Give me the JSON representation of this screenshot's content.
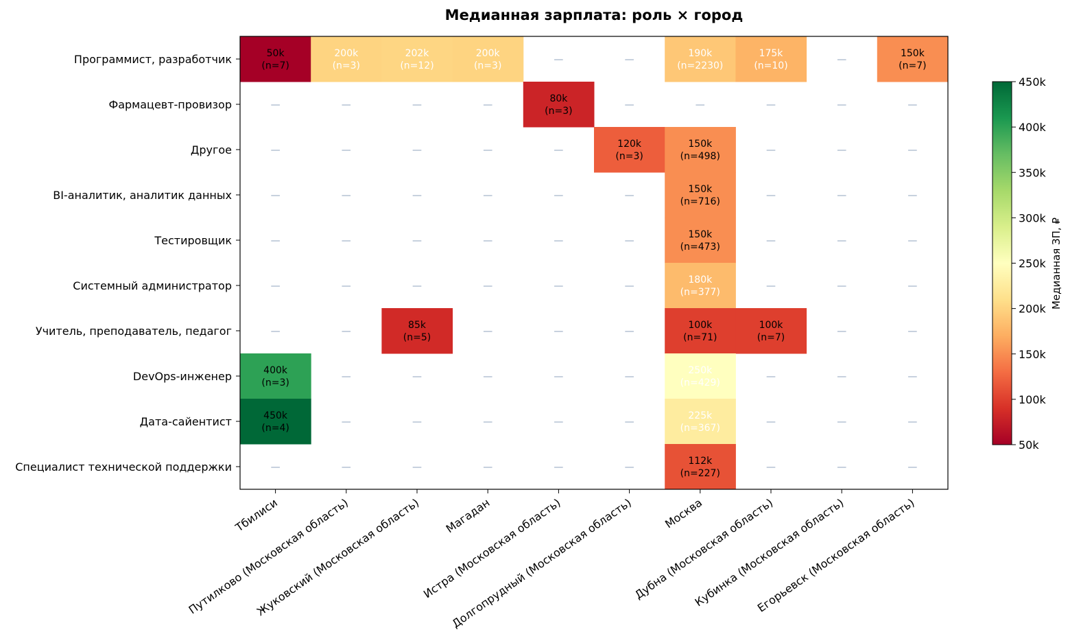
{
  "chart_data": {
    "type": "heatmap",
    "title": "Медианная зарплата: роль × город",
    "rows": [
      "Программист, разработчик",
      "Фармацевт-провизор",
      "Другое",
      "BI-аналитик, аналитик данных",
      "Тестировщик",
      "Системный администратор",
      "Учитель, преподаватель, педагог",
      "DevOps-инженер",
      "Дата-сайентист",
      "Специалист технической поддержки"
    ],
    "columns": [
      "Тбилиси",
      "Путилково (Московская область)",
      "Жуковский  (Московская область)",
      "Магадан",
      "Истра (Московская область)",
      "Долгопрудный (Московская область)",
      "Москва",
      "Дубна (Московская область)",
      "Кубинка (Московская область)",
      "Егорьевск (Московская область)"
    ],
    "cells": [
      {
        "row": 0,
        "col": 0,
        "value": 50,
        "label": "50k",
        "n": "(n=7)"
      },
      {
        "row": 0,
        "col": 1,
        "value": 200,
        "label": "200k",
        "n": "(n=3)"
      },
      {
        "row": 0,
        "col": 2,
        "value": 202,
        "label": "202k",
        "n": "(n=12)"
      },
      {
        "row": 0,
        "col": 3,
        "value": 200,
        "label": "200k",
        "n": "(n=3)"
      },
      {
        "row": 0,
        "col": 6,
        "value": 190,
        "label": "190k",
        "n": "(n=2230)"
      },
      {
        "row": 0,
        "col": 7,
        "value": 175,
        "label": "175k",
        "n": "(n=10)"
      },
      {
        "row": 0,
        "col": 9,
        "value": 150,
        "label": "150k",
        "n": "(n=7)"
      },
      {
        "row": 1,
        "col": 4,
        "value": 80,
        "label": "80k",
        "n": "(n=3)"
      },
      {
        "row": 2,
        "col": 5,
        "value": 120,
        "label": "120k",
        "n": "(n=3)"
      },
      {
        "row": 2,
        "col": 6,
        "value": 150,
        "label": "150k",
        "n": "(n=498)"
      },
      {
        "row": 3,
        "col": 6,
        "value": 150,
        "label": "150k",
        "n": "(n=716)"
      },
      {
        "row": 4,
        "col": 6,
        "value": 150,
        "label": "150k",
        "n": "(n=473)"
      },
      {
        "row": 5,
        "col": 6,
        "value": 180,
        "label": "180k",
        "n": "(n=377)"
      },
      {
        "row": 6,
        "col": 2,
        "value": 85,
        "label": "85k",
        "n": "(n=5)"
      },
      {
        "row": 6,
        "col": 6,
        "value": 100,
        "label": "100k",
        "n": "(n=71)"
      },
      {
        "row": 6,
        "col": 7,
        "value": 100,
        "label": "100k",
        "n": "(n=7)"
      },
      {
        "row": 7,
        "col": 0,
        "value": 400,
        "label": "400k",
        "n": "(n=3)"
      },
      {
        "row": 7,
        "col": 6,
        "value": 250,
        "label": "250k",
        "n": "(n=429)"
      },
      {
        "row": 8,
        "col": 0,
        "value": 450,
        "label": "450k",
        "n": "(n=4)"
      },
      {
        "row": 8,
        "col": 6,
        "value": 225,
        "label": "225k",
        "n": "(n=367)"
      },
      {
        "row": 9,
        "col": 6,
        "value": 112,
        "label": "112k",
        "n": "(n=227)"
      }
    ],
    "empty_marker": "—",
    "colorbar": {
      "label": "Медианная ЗП, ₽",
      "ticks": [
        {
          "value": 50,
          "label": "50k"
        },
        {
          "value": 100,
          "label": "100k"
        },
        {
          "value": 150,
          "label": "150k"
        },
        {
          "value": 200,
          "label": "200k"
        },
        {
          "value": 250,
          "label": "250k"
        },
        {
          "value": 300,
          "label": "300k"
        },
        {
          "value": 350,
          "label": "350k"
        },
        {
          "value": 400,
          "label": "400k"
        },
        {
          "value": 450,
          "label": "450k"
        }
      ],
      "range": [
        50,
        450
      ],
      "colormap": "RdYlGn",
      "position": "right"
    }
  }
}
